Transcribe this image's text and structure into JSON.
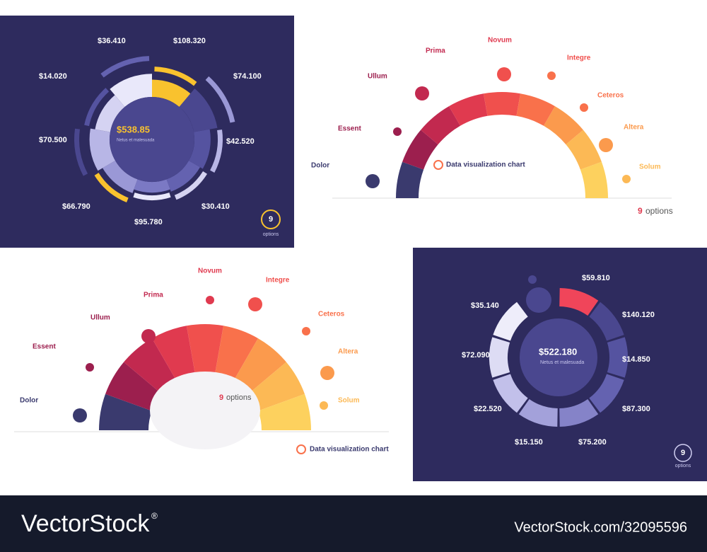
{
  "panel1": {
    "center_value": "$538.85",
    "center_caption": "Netus et malesuada",
    "values": [
      "$36.410",
      "$108.320",
      "$14.020",
      "$74.100",
      "$70.500",
      "$42.520",
      "$66.790",
      "$30.410",
      "$95.780"
    ],
    "options_count": "9",
    "options_text": "options"
  },
  "panel2": {
    "labels": [
      "Prima",
      "Novum",
      "Ullum",
      "Integre",
      "Ceteros",
      "Essent",
      "Altera",
      "Dolor",
      "Solum"
    ],
    "caption": "Data visualization chart",
    "options_count": "9",
    "options_text": "options"
  },
  "panel3": {
    "labels": [
      "Novum",
      "Prima",
      "Integre",
      "Ullum",
      "Ceteros",
      "Essent",
      "Altera",
      "Dolor",
      "Solum"
    ],
    "options_count": "9",
    "options_text": "options",
    "caption": "Data visualization chart"
  },
  "panel4": {
    "center_value": "$522.180",
    "center_caption": "Netus et malesuada",
    "values": [
      "$59.810",
      "$35.140",
      "$140.120",
      "$72.090",
      "$14.850",
      "$22.520",
      "$87.300",
      "$15.150",
      "$75.200"
    ],
    "options_count": "9",
    "options_text": "options"
  },
  "footer": {
    "brand": "VectorStock",
    "registered": "®",
    "image_id": "VectorStock.com/32095596"
  }
}
